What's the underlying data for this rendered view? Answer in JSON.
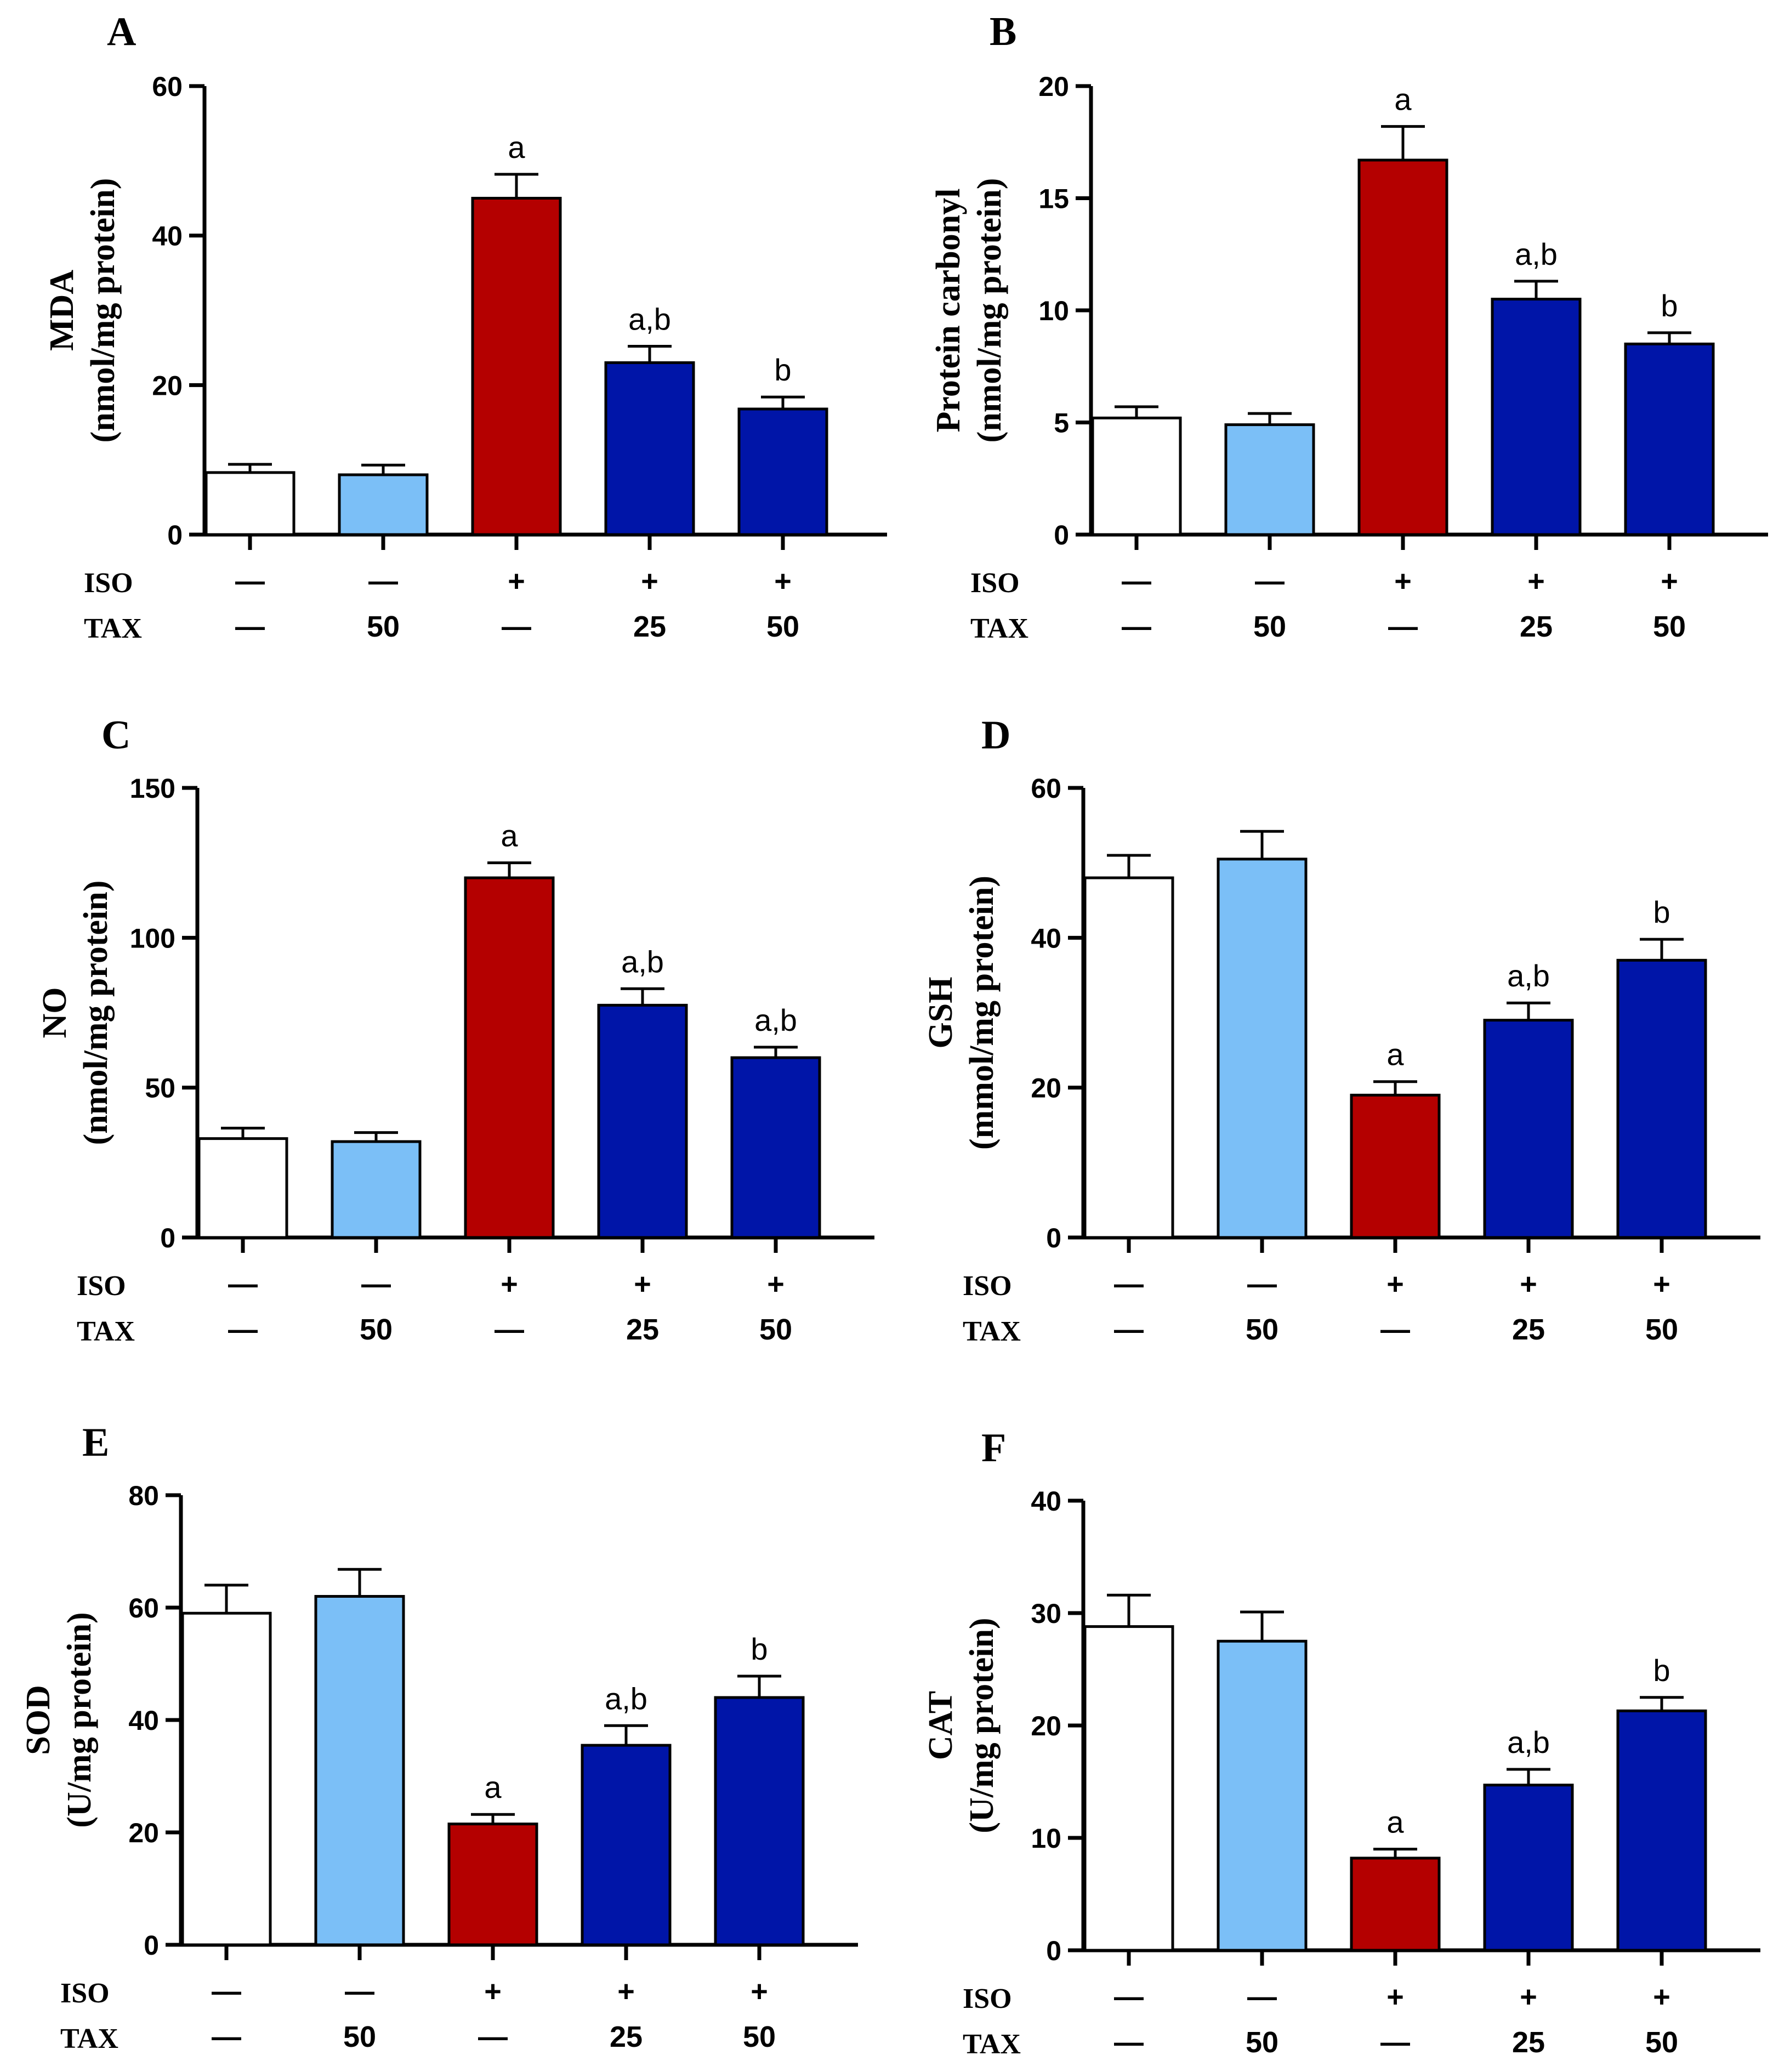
{
  "chart_data": [
    {
      "panel": "A",
      "type": "bar",
      "ylabel_lines": [
        "MDA",
        "(nmol/mg protein)"
      ],
      "ylim": [
        0,
        60
      ],
      "yticks": [
        "0",
        "20",
        "40",
        "60"
      ],
      "ytick_values": [
        0,
        20,
        40,
        60
      ],
      "values": [
        8.3,
        8.0,
        45.0,
        23.0,
        16.8
      ],
      "errors": [
        1.1,
        1.3,
        3.2,
        2.2,
        1.6
      ],
      "annotations": [
        "",
        "",
        "a",
        "a,b",
        "b"
      ],
      "iso_row": [
        "—",
        "—",
        "+",
        "+",
        "+"
      ],
      "tax_row": [
        "—",
        "50",
        "—",
        "25",
        "50"
      ]
    },
    {
      "panel": "B",
      "type": "bar",
      "ylabel_lines": [
        "Protein carbonyl",
        "(nmol/mg protein)"
      ],
      "ylim": [
        0,
        20
      ],
      "yticks": [
        "0",
        "5",
        "10",
        "15",
        "20"
      ],
      "ytick_values": [
        0,
        5,
        10,
        15,
        20
      ],
      "values": [
        5.2,
        4.9,
        16.7,
        10.5,
        8.5
      ],
      "errors": [
        0.5,
        0.5,
        1.5,
        0.8,
        0.5
      ],
      "annotations": [
        "",
        "",
        "a",
        "a,b",
        "b"
      ],
      "iso_row": [
        "—",
        "—",
        "+",
        "+",
        "+"
      ],
      "tax_row": [
        "—",
        "50",
        "—",
        "25",
        "50"
      ]
    },
    {
      "panel": "C",
      "type": "bar",
      "ylabel_lines": [
        "NO",
        "(nmol/mg protein)"
      ],
      "ylim": [
        0,
        150
      ],
      "yticks": [
        "0",
        "50",
        "100",
        "150"
      ],
      "ytick_values": [
        0,
        50,
        100,
        150
      ],
      "values": [
        33,
        32,
        120,
        77.5,
        60
      ],
      "errors": [
        3.5,
        3,
        5,
        5.5,
        3.5
      ],
      "annotations": [
        "",
        "",
        "a",
        "a,b",
        "a,b"
      ],
      "iso_row": [
        "—",
        "—",
        "+",
        "+",
        "+"
      ],
      "tax_row": [
        "—",
        "50",
        "—",
        "25",
        "50"
      ]
    },
    {
      "panel": "D",
      "type": "bar",
      "ylabel_lines": [
        "GSH",
        "(mmol/mg protein)"
      ],
      "ylim": [
        0,
        60
      ],
      "yticks": [
        "0",
        "20",
        "40",
        "60"
      ],
      "ytick_values": [
        0,
        20,
        40,
        60
      ],
      "values": [
        48,
        50.5,
        19,
        29,
        37
      ],
      "errors": [
        3,
        3.7,
        1.8,
        2.3,
        2.8
      ],
      "annotations": [
        "",
        "",
        "a",
        "a,b",
        "b"
      ],
      "iso_row": [
        "—",
        "—",
        "+",
        "+",
        "+"
      ],
      "tax_row": [
        "—",
        "50",
        "—",
        "25",
        "50"
      ]
    },
    {
      "panel": "E",
      "type": "bar",
      "ylabel_lines": [
        "SOD",
        "(U/mg protein)"
      ],
      "ylim": [
        0,
        80
      ],
      "yticks": [
        "0",
        "20",
        "40",
        "60",
        "80"
      ],
      "ytick_values": [
        0,
        20,
        40,
        60,
        80
      ],
      "values": [
        59,
        62,
        21.5,
        35.5,
        44
      ],
      "errors": [
        5,
        4.8,
        1.7,
        3.5,
        3.8
      ],
      "annotations": [
        "",
        "",
        "a",
        "a,b",
        "b"
      ],
      "iso_row": [
        "—",
        "—",
        "+",
        "+",
        "+"
      ],
      "tax_row": [
        "—",
        "50",
        "—",
        "25",
        "50"
      ]
    },
    {
      "panel": "F",
      "type": "bar",
      "ylabel_lines": [
        "CAT",
        "(U/mg protein)"
      ],
      "ylim": [
        0,
        40
      ],
      "yticks": [
        "0",
        "10",
        "20",
        "30",
        "40"
      ],
      "ytick_values": [
        0,
        10,
        20,
        30,
        40
      ],
      "values": [
        28.8,
        27.5,
        8.2,
        14.7,
        21.3
      ],
      "errors": [
        2.8,
        2.6,
        0.8,
        1.4,
        1.2
      ],
      "annotations": [
        "",
        "",
        "a",
        "a,b",
        "b"
      ],
      "iso_row": [
        "—",
        "—",
        "+",
        "+",
        "+"
      ],
      "tax_row": [
        "—",
        "50",
        "—",
        "25",
        "50"
      ]
    }
  ],
  "row_labels": {
    "iso": "ISO",
    "tax": "TAX"
  },
  "bar_colors": [
    "#ffffff",
    "#7bbff7",
    "#b40000",
    "#0015a8",
    "#0015a8"
  ],
  "bar_edge_color": "#000000"
}
